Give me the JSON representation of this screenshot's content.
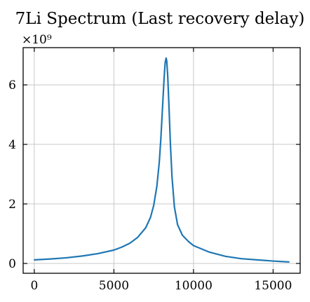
{
  "chart_data": {
    "type": "line",
    "title": "7Li Spectrum (Last recovery delay)",
    "xlabel": "",
    "ylabel": "",
    "y_scale_label": "×10⁹",
    "xlim": [
      -700,
      16700
    ],
    "ylim": [
      -0.33,
      7.25
    ],
    "x_ticks": [
      0,
      5000,
      10000,
      15000
    ],
    "x_tick_labels": [
      "0",
      "5000",
      "10000",
      "15000"
    ],
    "y_ticks": [
      0,
      2,
      4,
      6
    ],
    "y_tick_labels": [
      "0",
      "2",
      "4",
      "6"
    ],
    "grid": true,
    "color": "#1f77b4",
    "series": [
      {
        "x": [
          0,
          1000,
          2000,
          3000,
          4000,
          5000,
          5500,
          6000,
          6500,
          7000,
          7300,
          7500,
          7700,
          7850,
          7950,
          8050,
          8150,
          8220,
          8280,
          8320,
          8380,
          8450,
          8550,
          8650,
          8800,
          9000,
          9300,
          9700,
          10000,
          11000,
          12000,
          13000,
          14000,
          15000,
          16000
        ],
        "y": [
          0.12,
          0.15,
          0.19,
          0.25,
          0.33,
          0.45,
          0.55,
          0.68,
          0.88,
          1.2,
          1.55,
          1.95,
          2.6,
          3.4,
          4.2,
          5.2,
          6.2,
          6.75,
          6.9,
          6.8,
          6.3,
          5.4,
          4.0,
          2.9,
          1.9,
          1.3,
          0.95,
          0.73,
          0.6,
          0.38,
          0.24,
          0.16,
          0.12,
          0.08,
          0.05
        ]
      }
    ]
  }
}
